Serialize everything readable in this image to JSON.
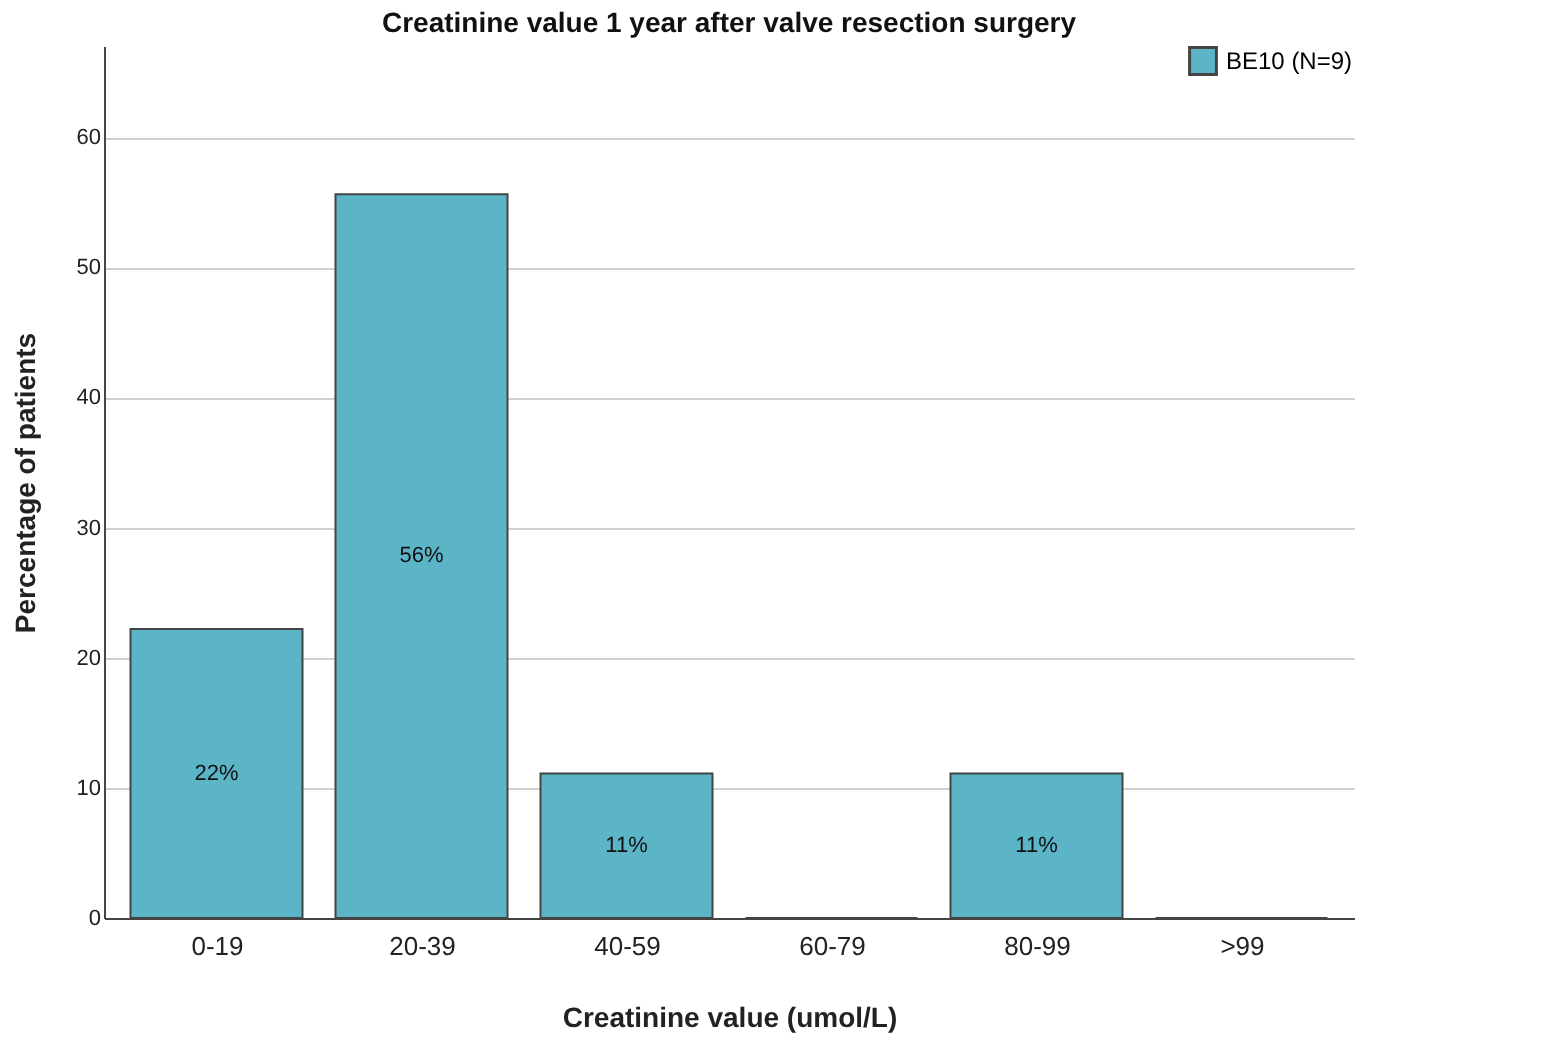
{
  "chart_data": {
    "type": "bar",
    "title": "Creatinine value 1 year after valve resection surgery",
    "xlabel": "Creatinine value (umol/L)",
    "ylabel": "Percentage of patients",
    "categories": [
      "0-19",
      "20-39",
      "40-59",
      "60-79",
      "80-99",
      ">99"
    ],
    "series": [
      {
        "name": "BE10 (N=9)",
        "color": "#5bb5c7",
        "values": [
          22.2,
          55.6,
          11.1,
          0,
          11.1,
          0
        ],
        "value_labels": [
          "22%",
          "56%",
          "11%",
          null,
          "11%",
          null
        ]
      }
    ],
    "ylim": [
      0,
      67
    ],
    "yticks": [
      0,
      10,
      20,
      30,
      40,
      50,
      60
    ],
    "grid": "y",
    "legend": "top right"
  }
}
